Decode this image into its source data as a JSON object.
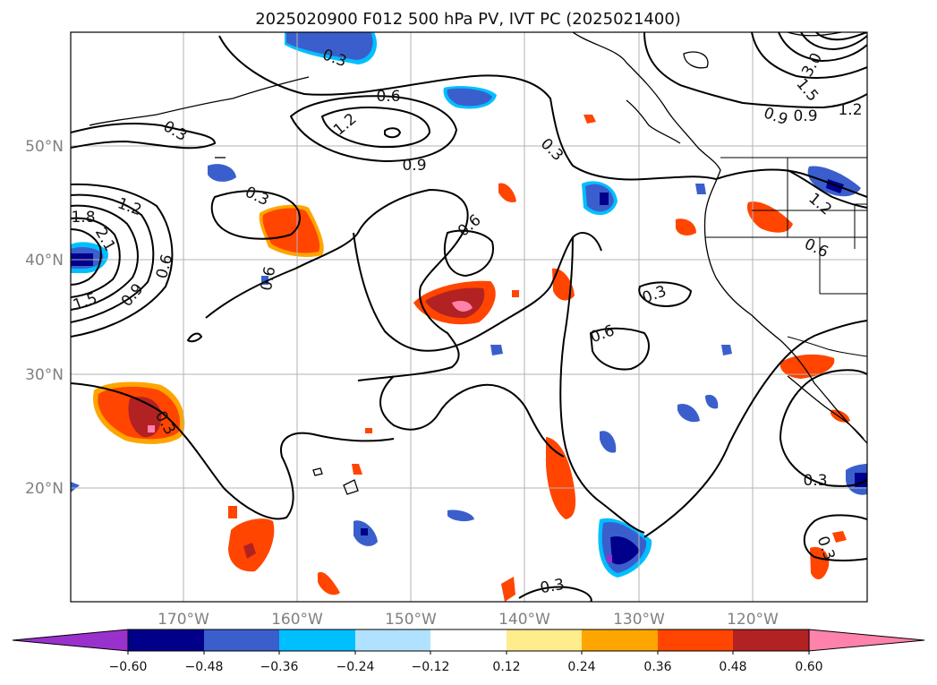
{
  "title": "2025020900 F012 500 hPa PV, IVT PC (2025021400)",
  "map": {
    "lat_ticks": [
      "50°N",
      "40°N",
      "30°N",
      "20°N"
    ],
    "lon_ticks": [
      "170°W",
      "160°W",
      "150°W",
      "140°W",
      "130°W",
      "120°W"
    ],
    "gridlines": true
  },
  "contour_labels": [
    "0.3",
    "0.6",
    "0.9",
    "1.2",
    "1.5",
    "1.8",
    "2.1",
    "3.0"
  ],
  "colorbar": {
    "ticks": [
      "−0.60",
      "−0.48",
      "−0.36",
      "−0.24",
      "−0.12",
      "0.12",
      "0.24",
      "0.36",
      "0.48",
      "0.60"
    ],
    "colors": [
      "#9932cc",
      "#00008b",
      "#3a5fcd",
      "#00bfff",
      "#b0e2ff",
      "#ffffff",
      "#ffec8b",
      "#ffa500",
      "#ff4500",
      "#b22222",
      "#ff82ab"
    ],
    "extend": "both"
  },
  "colors": {
    "pv_neg_weak": "#b0e2ff",
    "pv_neg_mid": "#00bfff",
    "pv_neg_strong": "#3a5fcd",
    "pv_neg_max": "#00008b",
    "pv_pos_weak": "#ffec8b",
    "pv_pos_mid": "#ffa500",
    "pv_pos_strong": "#ff4500",
    "pv_pos_max": "#b22222",
    "pv_pos_peak": "#ff82ab"
  }
}
